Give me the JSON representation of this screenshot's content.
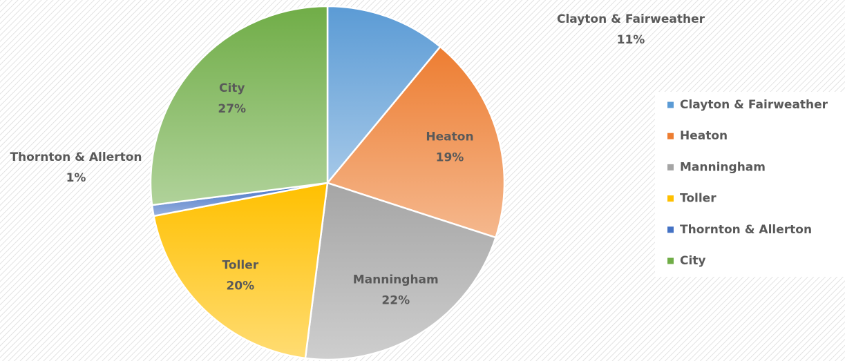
{
  "chart_data": {
    "type": "pie",
    "categories": [
      "Clayton & Fairweather",
      "Heaton",
      "Manningham",
      "Toller",
      "Thornton & Allerton",
      "City"
    ],
    "values": [
      11,
      19,
      22,
      20,
      1,
      27
    ],
    "value_labels": [
      "11%",
      "19%",
      "22%",
      "20%",
      "1%",
      "27%"
    ],
    "colors": [
      "#5b9bd5",
      "#ed7d31",
      "#a5a5a5",
      "#ffc000",
      "#4472c4",
      "#70ad47"
    ],
    "legend": "right"
  }
}
